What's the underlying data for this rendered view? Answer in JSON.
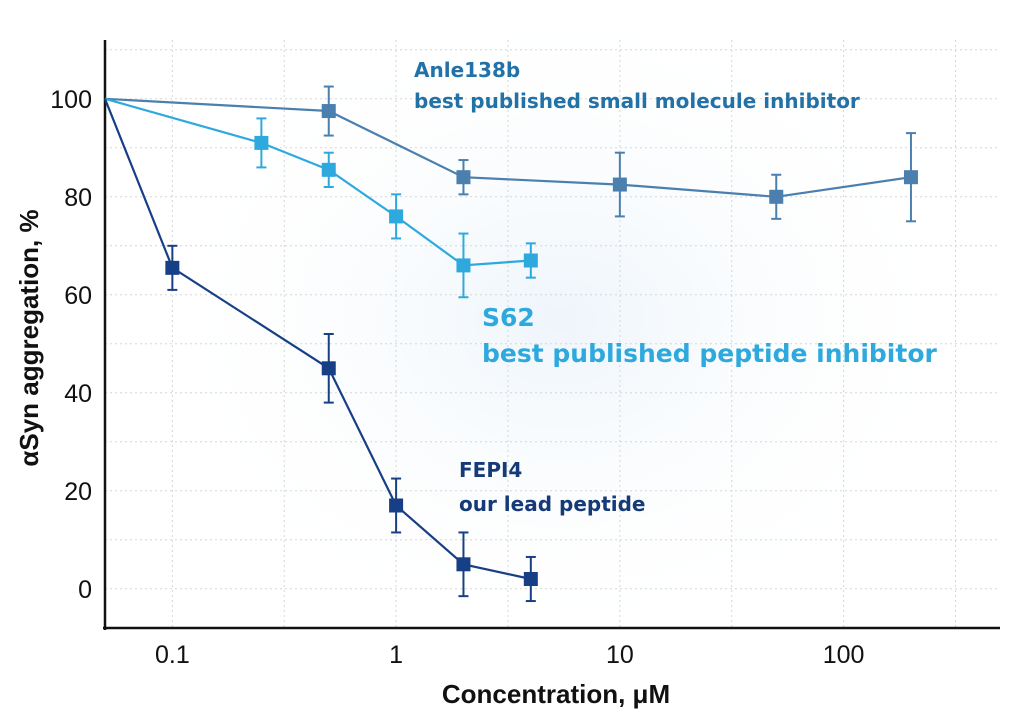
{
  "chart_data": {
    "type": "line",
    "xlabel": "Concentration, μM",
    "ylabel": "αSyn aggregation, %",
    "xscale": "log",
    "xlim": [
      0.05,
      500
    ],
    "ylim": [
      -8,
      112
    ],
    "grid": true,
    "x_ticks": [
      {
        "value": 0.1,
        "label": "0.1"
      },
      {
        "value": 1,
        "label": "1"
      },
      {
        "value": 10,
        "label": "10"
      },
      {
        "value": 100,
        "label": "100"
      }
    ],
    "y_ticks": [
      {
        "value": 0,
        "label": "0"
      },
      {
        "value": 20,
        "label": "20"
      },
      {
        "value": 40,
        "label": "40"
      },
      {
        "value": 60,
        "label": "60"
      },
      {
        "value": 80,
        "label": "80"
      },
      {
        "value": 100,
        "label": "100"
      }
    ],
    "series": [
      {
        "name": "Anle138b",
        "color": "#4a7fae",
        "line_start": {
          "x": 0.05,
          "y": 100
        },
        "points": [
          {
            "x": 0.5,
            "y": 97.5,
            "err": 5
          },
          {
            "x": 2,
            "y": 84,
            "err": 3.5
          },
          {
            "x": 10,
            "y": 82.5,
            "err": 6.5
          },
          {
            "x": 50,
            "y": 80,
            "err": 4.5
          },
          {
            "x": 200,
            "y": 84,
            "err": 9
          }
        ]
      },
      {
        "name": "S62",
        "color": "#2ea9dd",
        "line_start": {
          "x": 0.05,
          "y": 100
        },
        "points": [
          {
            "x": 0.25,
            "y": 91,
            "err": 5
          },
          {
            "x": 0.5,
            "y": 85.5,
            "err": 3.5
          },
          {
            "x": 1,
            "y": 76,
            "err": 4.5
          },
          {
            "x": 2,
            "y": 66,
            "err": 6.5
          },
          {
            "x": 4,
            "y": 67,
            "err": 3.5
          }
        ]
      },
      {
        "name": "FEPI4",
        "color": "#173f85",
        "line_start": {
          "x": 0.05,
          "y": 100
        },
        "points": [
          {
            "x": 0.1,
            "y": 65.5,
            "err": 4.5
          },
          {
            "x": 0.5,
            "y": 45,
            "err": 7
          },
          {
            "x": 1,
            "y": 17,
            "err": 5.5
          },
          {
            "x": 2,
            "y": 5,
            "err": 6.5
          },
          {
            "x": 4,
            "y": 2,
            "err": 4.5
          }
        ]
      }
    ],
    "annotations": [
      {
        "lines": [
          "Anle138b",
          "best published small molecule inhibitor"
        ],
        "color": "#2272a8"
      },
      {
        "lines": [
          "S62",
          "best published peptide inhibitor"
        ],
        "color": "#2ea9dd"
      },
      {
        "lines": [
          "FEPI4",
          "our lead peptide"
        ],
        "color": "#163a78"
      }
    ]
  }
}
